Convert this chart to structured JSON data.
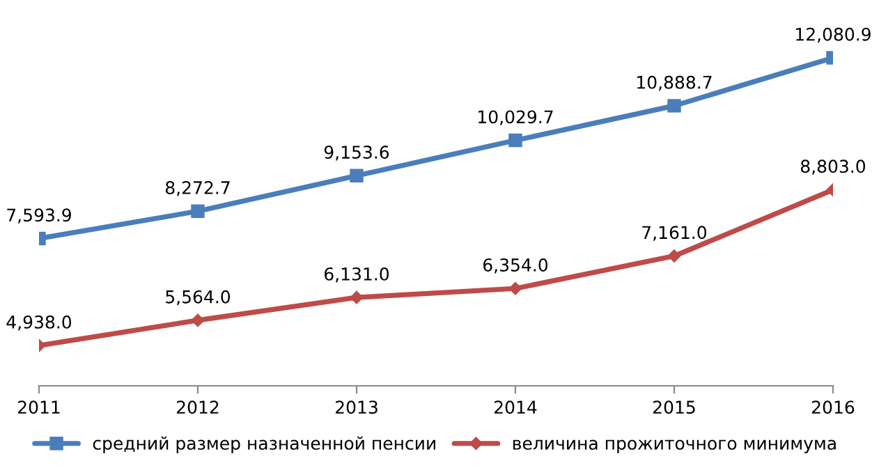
{
  "chart_data": {
    "type": "line",
    "categories": [
      "2011",
      "2012",
      "2013",
      "2014",
      "2015",
      "2016"
    ],
    "series": [
      {
        "name": "средний размер назначенной пенсии",
        "color": "#4a7ebb",
        "marker": "square",
        "values": [
          7593.9,
          8272.7,
          9153.6,
          10029.7,
          10888.7,
          12080.9
        ],
        "value_labels": [
          "7,593.9",
          "8,272.7",
          "9,153.6",
          "10,029.7",
          "10,888.7",
          "12,080.9"
        ]
      },
      {
        "name": "величина прожиточного минимума",
        "color": "#be4b48",
        "marker": "diamond",
        "values": [
          4938.0,
          5564.0,
          6131.0,
          6354.0,
          7161.0,
          8803.0
        ],
        "value_labels": [
          "4,938.0",
          "5,564.0",
          "6,131.0",
          "6,354.0",
          "7,161.0",
          "8,803.0"
        ]
      }
    ],
    "tick_labels": "x",
    "grid": false,
    "legend": "bottom",
    "line_style": "solid"
  }
}
